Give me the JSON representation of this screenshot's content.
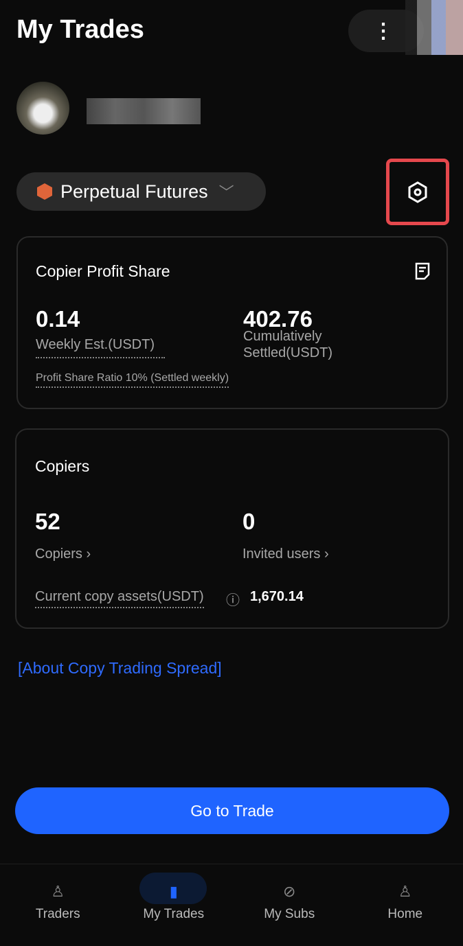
{
  "header": {
    "title": "My Trades",
    "more_icon": "kebab-icon"
  },
  "product_selector": {
    "label": "Perpetual Futures"
  },
  "profit_share": {
    "title": "Copier Profit Share",
    "weekly_value": "0.14",
    "weekly_label": "Weekly Est.(USDT)",
    "cumulative_value": "402.76",
    "cumulative_label_1": "Cumulatively",
    "cumulative_label_2": "Settled(USDT)",
    "ratio_note": "Profit Share Ratio 10% (Settled weekly)"
  },
  "copiers": {
    "title": "Copiers",
    "copiers_value": "52",
    "copiers_label": "Copiers",
    "invited_value": "0",
    "invited_label": "Invited users",
    "assets_label": "Current copy assets(USDT)",
    "assets_value": "1,670.14"
  },
  "link": "[About Copy Trading Spread]",
  "cta": "Go to Trade",
  "nav": [
    {
      "label": "Traders"
    },
    {
      "label": "My Trades",
      "active": true
    },
    {
      "label": "My Subs"
    },
    {
      "label": "Home"
    }
  ],
  "colors": {
    "accent": "#1f64ff",
    "highlight": "#e5484d"
  }
}
